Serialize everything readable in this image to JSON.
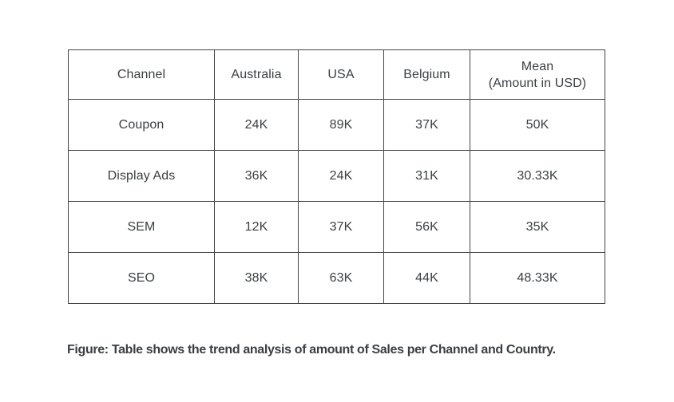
{
  "chart_data": {
    "type": "table",
    "title": "",
    "caption": "Figure: Table shows the trend analysis of amount of Sales per Channel and Country.",
    "columns": [
      "Channel",
      "Australia",
      "USA",
      "Belgium",
      "Mean (Amount in USD)"
    ],
    "rows": [
      [
        "Coupon",
        "24K",
        "89K",
        "37K",
        "50K"
      ],
      [
        "Display Ads",
        "36K",
        "24K",
        "31K",
        "30.33K"
      ],
      [
        "SEM",
        "12K",
        "37K",
        "56K",
        "35K"
      ],
      [
        "SEO",
        "38K",
        "63K",
        "44K",
        "48.33K"
      ]
    ],
    "values_numeric_in_thousands": {
      "categories": [
        "Australia",
        "USA",
        "Belgium",
        "Mean"
      ],
      "series": [
        {
          "name": "Coupon",
          "values": [
            24,
            89,
            37,
            50
          ]
        },
        {
          "name": "Display Ads",
          "values": [
            36,
            24,
            31,
            30.33
          ]
        },
        {
          "name": "SEM",
          "values": [
            12,
            37,
            56,
            35
          ]
        },
        {
          "name": "SEO",
          "values": [
            38,
            63,
            44,
            48.33
          ]
        }
      ],
      "unit": "K USD"
    },
    "layout": {
      "grid": "full-borders",
      "background": "#ffffff",
      "border_color": "#454545",
      "text_color": "#3b3f42"
    }
  },
  "table": {
    "header": {
      "channel": "Channel",
      "australia": "Australia",
      "usa": "USA",
      "belgium": "Belgium",
      "mean_line1": "Mean",
      "mean_line2": "(Amount in USD)"
    },
    "rows": [
      {
        "channel": "Coupon",
        "australia": "24K",
        "usa": "89K",
        "belgium": "37K",
        "mean": "50K"
      },
      {
        "channel": "Display Ads",
        "australia": "36K",
        "usa": "24K",
        "belgium": "31K",
        "mean": "30.33K"
      },
      {
        "channel": "SEM",
        "australia": "12K",
        "usa": "37K",
        "belgium": "56K",
        "mean": "35K"
      },
      {
        "channel": "SEO",
        "australia": "38K",
        "usa": "63K",
        "belgium": "44K",
        "mean": "48.33K"
      }
    ]
  },
  "caption": "Figure: Table shows the trend analysis of amount of Sales per Channel and Country."
}
